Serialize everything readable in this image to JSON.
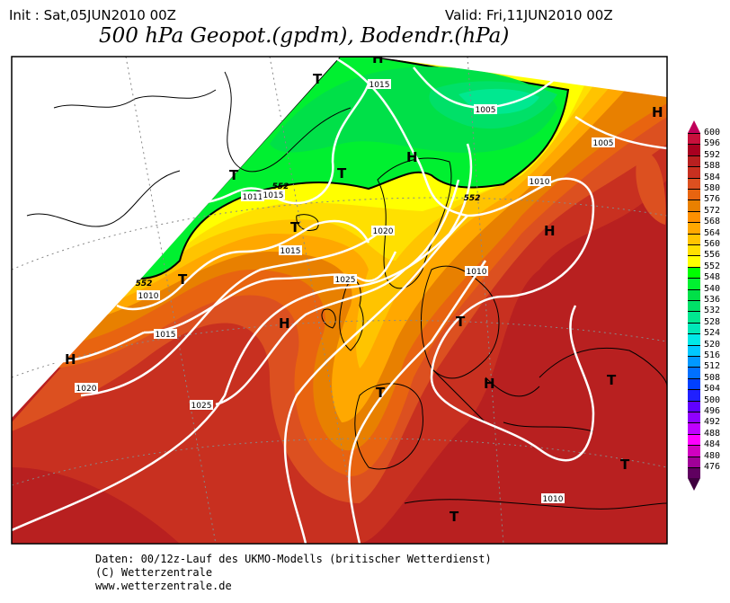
{
  "header": {
    "init": "Init : Sat,05JUN2010 00Z",
    "valid": "Valid: Fri,11JUN2010 00Z",
    "title": "500 hPa Geopot.(gpdm), Bodendr.(hPa)"
  },
  "footer": {
    "line1": "Daten: 00/12z-Lauf des UKMO-Modells (britischer Wetterdienst)",
    "line2": "(C) Wetterzentrale",
    "line3": "www.wetterzentrale.de"
  },
  "legend": {
    "labels": [
      "600",
      "596",
      "592",
      "588",
      "584",
      "580",
      "576",
      "572",
      "568",
      "564",
      "560",
      "556",
      "552",
      "548",
      "540",
      "536",
      "532",
      "528",
      "524",
      "520",
      "516",
      "512",
      "508",
      "504",
      "500",
      "496",
      "492",
      "488",
      "484",
      "480",
      "476"
    ],
    "colors": [
      "#c8103c",
      "#a80020",
      "#b82020",
      "#c83020",
      "#dc5020",
      "#e86410",
      "#e88000",
      "#ff9000",
      "#ffa800",
      "#ffc400",
      "#ffe000",
      "#ffff00",
      "#00ff00",
      "#00f030",
      "#00e048",
      "#00e068",
      "#00e890",
      "#00e8b8",
      "#00e8e8",
      "#00c8ff",
      "#0098ff",
      "#0070ff",
      "#0040ff",
      "#2020ff",
      "#6000ff",
      "#9000ff",
      "#c000ff",
      "#ff00ff",
      "#d000c0",
      "#a00098",
      "#600060"
    ],
    "top_arrow_color": "#c0005a",
    "bottom_arrow_color": "#400040"
  },
  "map": {
    "isobar_labels": [
      "1015",
      "1005",
      "1005",
      "1010",
      "552",
      "1011",
      "1015",
      "552",
      "1020",
      "1015",
      "1025",
      "1010",
      "552",
      "1010",
      "1015",
      "1020",
      "1025",
      "1010"
    ],
    "pressure_centers": [
      "H",
      "T",
      "T",
      "T",
      "H",
      "T",
      "H",
      "T",
      "H",
      "H",
      "T",
      "T",
      "H",
      "T",
      "T",
      "T",
      "H"
    ]
  }
}
